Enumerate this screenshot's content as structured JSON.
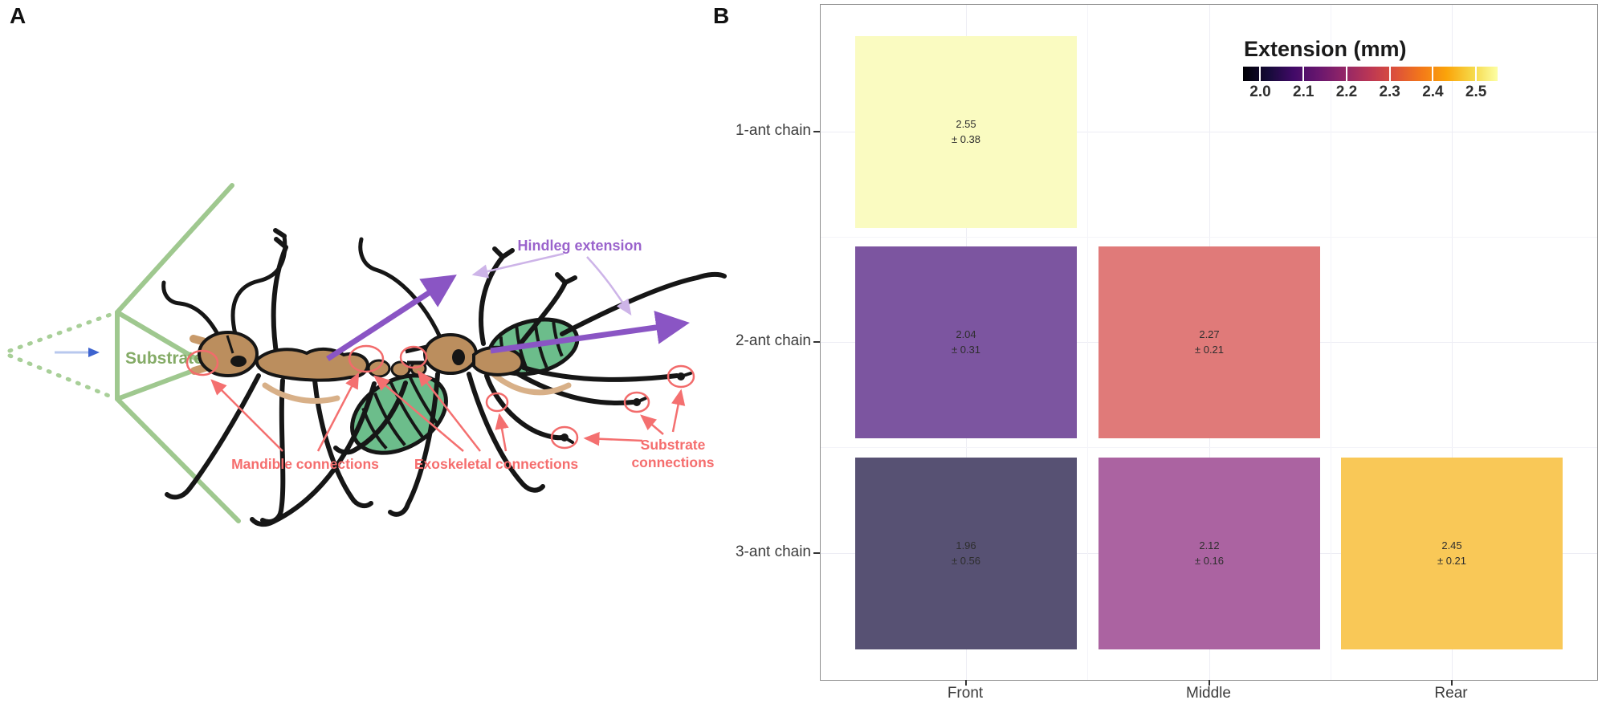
{
  "figure": {
    "panel_a_label": "A",
    "panel_b_label": "B"
  },
  "panel_a": {
    "substrate_label": "Substrate",
    "hindleg_label": "Hindleg extension",
    "mandible_label": "Mandible connections",
    "exoskeletal_label": "Exoskeletal connections",
    "substrate_connections_line1": "Substrate",
    "substrate_connections_line2": "connections",
    "colors": {
      "substrate_green": "#9fc88f",
      "substrate_text_green": "#84ab66",
      "annotation_red": "#f56d6d",
      "hindleg_purple": "#8a55c4",
      "hindleg_label_purple": "#9a63cc",
      "pointer_lavender": "#cdb4e8",
      "ant_brown": "#bb8e5e",
      "gaster_green": "#6cbd8b",
      "blue_arrow": "#3d63cf"
    }
  },
  "chart_data": {
    "type": "heatmap",
    "legend_title": "Extension (mm)",
    "x_categories": [
      "Front",
      "Middle",
      "Rear"
    ],
    "y_categories": [
      "1-ant chain",
      "2-ant chain",
      "3-ant chain"
    ],
    "legend_ticks": [
      "2.0",
      "2.1",
      "2.2",
      "2.3",
      "2.4",
      "2.5"
    ],
    "value_range": [
      1.96,
      2.55
    ],
    "cells": [
      {
        "row": "1-ant chain",
        "col": "Front",
        "value": 2.55,
        "sd": 0.38,
        "mean_label": "2.55",
        "sd_label": "± 0.38",
        "color": "#fafbc1"
      },
      {
        "row": "2-ant chain",
        "col": "Front",
        "value": 2.04,
        "sd": 0.31,
        "mean_label": "2.04",
        "sd_label": "± 0.31",
        "color": "#7c55a0"
      },
      {
        "row": "2-ant chain",
        "col": "Middle",
        "value": 2.27,
        "sd": 0.21,
        "mean_label": "2.27",
        "sd_label": "± 0.21",
        "color": "#e07a79"
      },
      {
        "row": "3-ant chain",
        "col": "Front",
        "value": 1.96,
        "sd": 0.56,
        "mean_label": "1.96",
        "sd_label": "± 0.56",
        "color": "#575173"
      },
      {
        "row": "3-ant chain",
        "col": "Middle",
        "value": 2.12,
        "sd": 0.16,
        "mean_label": "2.12",
        "sd_label": "± 0.16",
        "color": "#ab63a1"
      },
      {
        "row": "3-ant chain",
        "col": "Rear",
        "value": 2.45,
        "sd": 0.21,
        "mean_label": "2.45",
        "sd_label": "± 0.21",
        "color": "#f9c857"
      }
    ],
    "gradient_stops": [
      "#000004",
      "#160b39",
      "#420a68",
      "#6a176e",
      "#932667",
      "#bc3754",
      "#dd513a",
      "#f37819",
      "#fba40a",
      "#f6d746",
      "#fcffa4"
    ],
    "grid": true,
    "legend_position": "inside-top-right"
  }
}
